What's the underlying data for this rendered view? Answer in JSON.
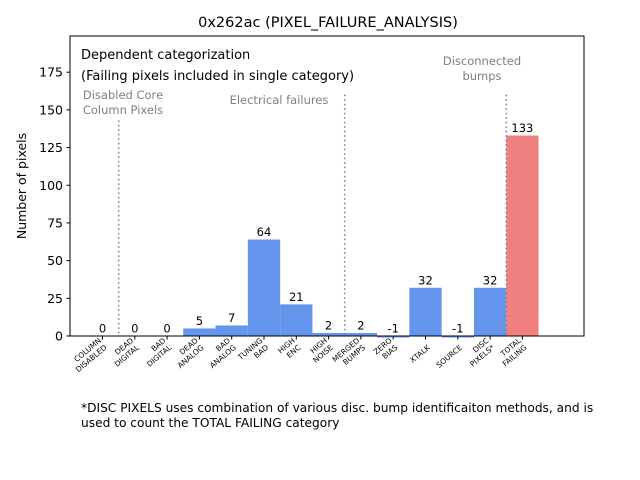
{
  "chart_data": {
    "type": "bar",
    "title": "0x262ac (PIXEL_FAILURE_ANALYSIS)",
    "xlabel": "",
    "ylabel": "Number of pixels",
    "ylim": [
      0,
      199
    ],
    "yticks": [
      0,
      25,
      50,
      75,
      100,
      125,
      150,
      175
    ],
    "grid": false,
    "categories": [
      "COLUMN DISABLED",
      "DEAD DIGITAL",
      "BAD DIGITAL",
      "DEAD ANALOG",
      "BAD ANALOG",
      "TUNING BAD",
      "HIGH ENC",
      "HIGH NOISE",
      "MERGED BUMPS",
      "ZERO BIAS",
      "XTALK",
      "SOURCE",
      "DISC PIXELS*",
      "TOTAL FAILING"
    ],
    "tick_labels": [
      [
        "COLUMN",
        "DISABLED"
      ],
      [
        "DEAD",
        "DIGITAL"
      ],
      [
        "BAD",
        "DIGITAL"
      ],
      [
        "DEAD",
        "ANALOG"
      ],
      [
        "BAD",
        "ANALOG"
      ],
      [
        "TUNING",
        "BAD"
      ],
      [
        "HIGH",
        "ENC"
      ],
      [
        "HIGH",
        "NOISE"
      ],
      [
        "MERGED",
        "BUMPS"
      ],
      [
        "ZERO",
        "BIAS"
      ],
      [
        "XTALK"
      ],
      [
        "SOURCE"
      ],
      [
        "DISC",
        "PIXELS*"
      ],
      [
        "TOTAL",
        "FAILING"
      ]
    ],
    "values": [
      0,
      0,
      0,
      5,
      7,
      64,
      21,
      2,
      2,
      -1,
      32,
      -1,
      32,
      133
    ],
    "value_labels": [
      "0",
      "0",
      "0",
      "5",
      "7",
      "64",
      "21",
      "2",
      "2",
      "-1",
      "32",
      "-1",
      "32",
      "133"
    ],
    "bar_colors": [
      "#6495ed",
      "#6495ed",
      "#6495ed",
      "#6495ed",
      "#6495ed",
      "#6495ed",
      "#6495ed",
      "#6495ed",
      "#6495ed",
      "#6495ed",
      "#6495ed",
      "#6495ed",
      "#6495ed",
      "#f08080"
    ],
    "separators": [
      {
        "after_category": "COLUMN DISABLED",
        "top_value": 143
      },
      {
        "after_category": "HIGH NOISE",
        "top_value": 160
      },
      {
        "after_category": "DISC PIXELS*",
        "top_value": 160
      }
    ],
    "annotations": {
      "header_line1": "Dependent categorization",
      "header_line2": "(Failing pixels included in single category)",
      "region_disabled": [
        "Disabled Core",
        "Column Pixels"
      ],
      "region_electrical": [
        "Electrical failures"
      ],
      "region_disconnected": [
        "Disconnected",
        "bumps"
      ]
    },
    "footnote": "*DISC PIXELS uses combination of various disc. bump identificaiton methods, and is used to count the TOTAL FAILING category"
  }
}
